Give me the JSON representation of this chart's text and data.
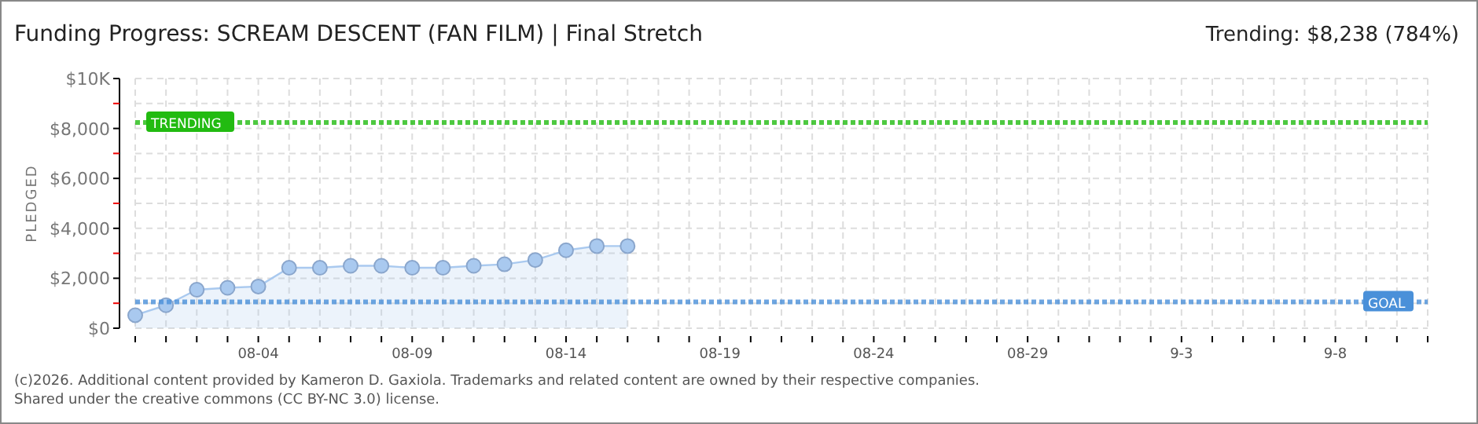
{
  "chart_data": {
    "type": "area",
    "title": "Funding Progress: SCREAM DESCENT (FAN FILM) | Final Stretch",
    "subtitle": "Trending: $8,238 (784%)",
    "ylabel": "PLEDGED",
    "x": [
      "--07-31",
      "--08-01",
      "--08-02",
      "--08-03",
      "--08-04",
      "--08-05",
      "--08-06",
      "--08-07",
      "--08-08",
      "--08-09",
      "--08-10",
      "--08-11",
      "--08-12",
      "--08-13",
      "--08-14",
      "--08-15",
      "--08-16"
    ],
    "series": [
      {
        "color": "#a9c9ef",
        "values": [
          520,
          920,
          1540,
          1620,
          1670,
          2420,
          2420,
          2500,
          2500,
          2420,
          2420,
          2500,
          2560,
          2730,
          3120,
          3290,
          3290
        ]
      }
    ],
    "marker": "circle",
    "grid": true,
    "xlim": [
      "--07-31",
      "--09-11"
    ],
    "xticks": [
      {
        "value": "--07-31",
        "label": null
      },
      {
        "value": "--08-01",
        "label": null
      },
      {
        "value": "--08-02",
        "label": null
      },
      {
        "value": "--08-03",
        "label": null
      },
      {
        "value": "--08-04",
        "label": "08-04"
      },
      {
        "value": "--08-05",
        "label": null
      },
      {
        "value": "--08-06",
        "label": null
      },
      {
        "value": "--08-07",
        "label": null
      },
      {
        "value": "--08-08",
        "label": null
      },
      {
        "value": "--08-09",
        "label": "08-09"
      },
      {
        "value": "--08-10",
        "label": null
      },
      {
        "value": "--08-11",
        "label": null
      },
      {
        "value": "--08-12",
        "label": null
      },
      {
        "value": "--08-13",
        "label": null
      },
      {
        "value": "--08-14",
        "label": "08-14"
      },
      {
        "value": "--08-15",
        "label": null
      },
      {
        "value": "--08-16",
        "label": null
      },
      {
        "value": "--08-17",
        "label": null
      },
      {
        "value": "--08-18",
        "label": null
      },
      {
        "value": "--08-19",
        "label": "08-19"
      },
      {
        "value": "--08-20",
        "label": null
      },
      {
        "value": "--08-21",
        "label": null
      },
      {
        "value": "--08-22",
        "label": null
      },
      {
        "value": "--08-23",
        "label": null
      },
      {
        "value": "--08-24",
        "label": "08-24"
      },
      {
        "value": "--08-25",
        "label": null
      },
      {
        "value": "--08-26",
        "label": null
      },
      {
        "value": "--08-27",
        "label": null
      },
      {
        "value": "--08-28",
        "label": null
      },
      {
        "value": "--08-29",
        "label": "08-29"
      },
      {
        "value": "--08-30",
        "label": null
      },
      {
        "value": "--08-31",
        "label": null
      },
      {
        "value": "--09-01",
        "label": null
      },
      {
        "value": "--09-02",
        "label": null
      },
      {
        "value": "--09-03",
        "label": "9-3"
      },
      {
        "value": "--09-04",
        "label": null
      },
      {
        "value": "--09-05",
        "label": null
      },
      {
        "value": "--09-06",
        "label": null
      },
      {
        "value": "--09-07",
        "label": null
      },
      {
        "value": "--09-08",
        "label": "9-8"
      },
      {
        "value": "--09-09",
        "label": null
      },
      {
        "value": "--09-10",
        "label": null
      },
      {
        "value": "--09-11",
        "label": null
      }
    ],
    "ylim": [
      0,
      10000
    ],
    "yticks": [
      {
        "value": 0,
        "label": "$0"
      },
      {
        "value": 1000,
        "label": null
      },
      {
        "value": 2000,
        "label": "$2,000"
      },
      {
        "value": 3000,
        "label": null
      },
      {
        "value": 4000,
        "label": "$4,000"
      },
      {
        "value": 5000,
        "label": null
      },
      {
        "value": 6000,
        "label": "$6,000"
      },
      {
        "value": 7000,
        "label": null
      },
      {
        "value": 8000,
        "label": "$8,000"
      },
      {
        "value": 9000,
        "label": null
      },
      {
        "value": 10000,
        "label": "$10K"
      }
    ],
    "ref_lines": [
      {
        "axis": "y",
        "value": 8238,
        "label": "TRENDING",
        "color": "#22bb11",
        "line_style": "dotted"
      },
      {
        "axis": "y",
        "value": 1050,
        "label": "GOAL",
        "color": "#4a90d9",
        "line_style": "dotted"
      }
    ],
    "annotations": [
      "(c)2026. Additional content provided by Kameron D. Gaxiola. Trademarks and related content are owned by their respective companies.",
      "Shared under the creative commons (CC BY-NC 3.0) license."
    ]
  }
}
